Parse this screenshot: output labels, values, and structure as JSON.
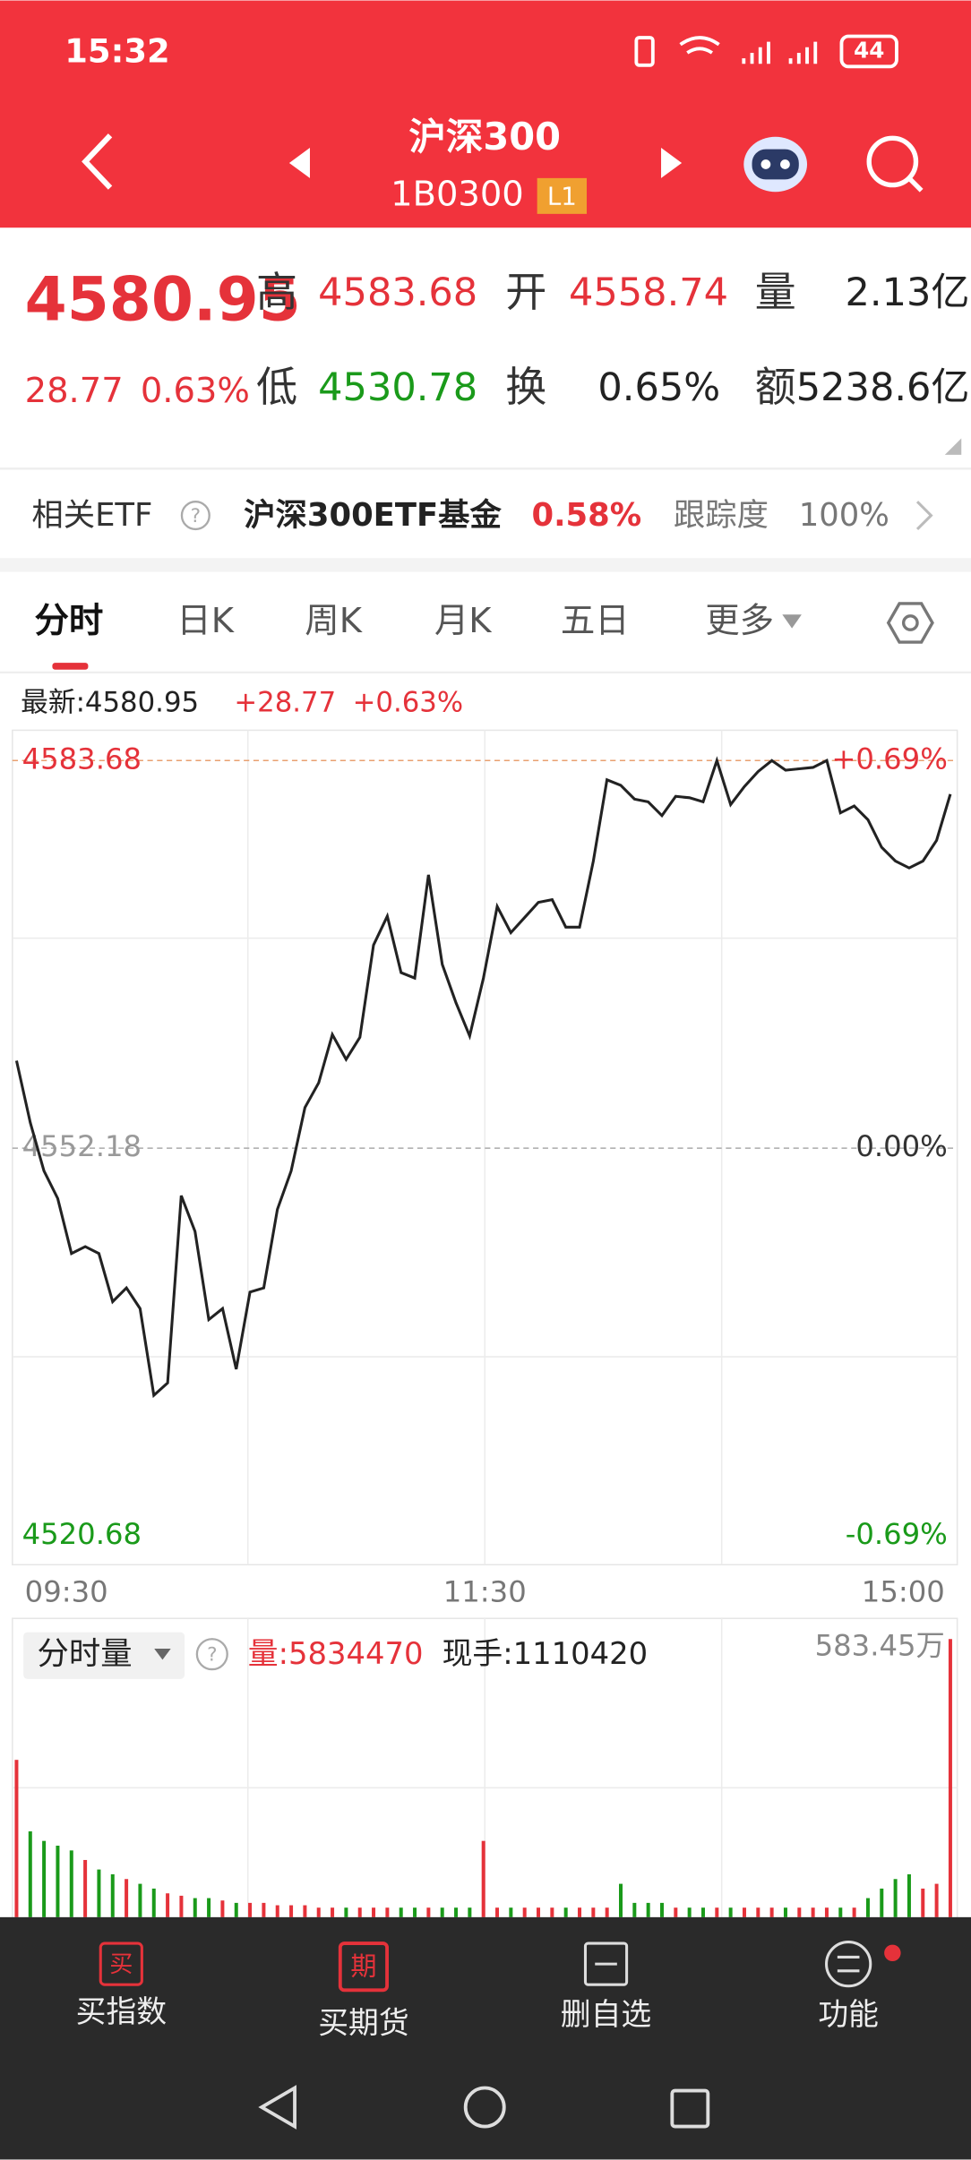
{
  "status": {
    "time": "15:32",
    "battery": "44"
  },
  "header": {
    "title": "沪深300",
    "code": "1B0300",
    "badge": "L1"
  },
  "quote": {
    "price": "4580.95",
    "change": "28.77",
    "pct": "0.63%",
    "fields": [
      {
        "label": "高",
        "value": "4583.68"
      },
      {
        "label": "开",
        "value": "4558.74"
      },
      {
        "label": "量",
        "value": "2.13亿"
      },
      {
        "label": "低",
        "value": "4530.78"
      },
      {
        "label": "换",
        "value": "0.65%"
      },
      {
        "label": "额",
        "value": "5238.6亿"
      }
    ]
  },
  "etf": {
    "label": "相关ETF",
    "name": "沪深300ETF基金",
    "pct": "0.58%",
    "track_label": "跟踪度",
    "track": "100%"
  },
  "tabs": [
    "分时",
    "日K",
    "周K",
    "月K",
    "五日",
    "更多"
  ],
  "info": {
    "latest": "最新:4580.95",
    "change": "+28.77",
    "pct": "+0.63%"
  },
  "chart_data": {
    "type": "line",
    "ylim": [
      4520.68,
      4583.68
    ],
    "yticks": [
      4583.68,
      4552.18,
      4520.68
    ],
    "y2lim": [
      -0.69,
      0.69
    ],
    "y2ticks": [
      {
        "value": 0.69,
        "label": "+0.69%"
      },
      {
        "value": 0,
        "label": "0.00%"
      },
      {
        "value": -0.69,
        "label": "-0.69%"
      }
    ],
    "x_labels": [
      "09:30",
      "11:30",
      "15:00"
    ],
    "color": "#222222",
    "values": [
      4559.29,
      4554.25,
      4550.33,
      4548.1,
      4543.62,
      4544.18,
      4543.62,
      4539.7,
      4540.82,
      4539.14,
      4532.09,
      4533.1,
      4548.32,
      4545.41,
      4538.25,
      4539.14,
      4534.22,
      4540.49,
      4540.82,
      4547.2,
      4550.33,
      4555.48,
      4557.5,
      4561.41,
      4559.4,
      4561.19,
      4568.69,
      4571.04,
      4566.45,
      4566.0,
      4574.39,
      4567.12,
      4563.99,
      4561.3,
      4566.0,
      4571.82,
      4569.69,
      4570.92,
      4572.15,
      4572.38,
      4570.14,
      4570.14,
      4575.51,
      4582.11,
      4581.67,
      4580.55,
      4580.32,
      4579.2,
      4580.77,
      4580.66,
      4580.32,
      4583.68,
      4580.1,
      4581.55,
      4582.78,
      4583.68,
      4582.9,
      4583.01,
      4583.12,
      4583.68,
      4579.43,
      4579.99,
      4578.87,
      4576.63,
      4575.51,
      4574.95,
      4575.51,
      4577.19,
      4580.95
    ]
  },
  "volume": {
    "title": "分时量",
    "total": "量:5834470",
    "hand": "现手:1110420",
    "vol_max": {
      "value": 583.45,
      "label": "583.45万"
    },
    "values": [
      330,
      180,
      160,
      150,
      140,
      120,
      100,
      90,
      80,
      70,
      60,
      50,
      45,
      40,
      40,
      35,
      30,
      30,
      30,
      25,
      25,
      25,
      20,
      20,
      20,
      20,
      20,
      20,
      20,
      20,
      20,
      20,
      20,
      20,
      160,
      20,
      20,
      20,
      20,
      20,
      20,
      20,
      20,
      20,
      70,
      30,
      30,
      30,
      20,
      20,
      20,
      20,
      20,
      20,
      20,
      20,
      20,
      20,
      20,
      20,
      20,
      20,
      40,
      60,
      80,
      90,
      60,
      70,
      583.45
    ]
  },
  "nav": {
    "icons": [
      "买",
      "期"
    ],
    "labels": [
      "买指数",
      "买期货",
      "删自选",
      "功能"
    ]
  }
}
